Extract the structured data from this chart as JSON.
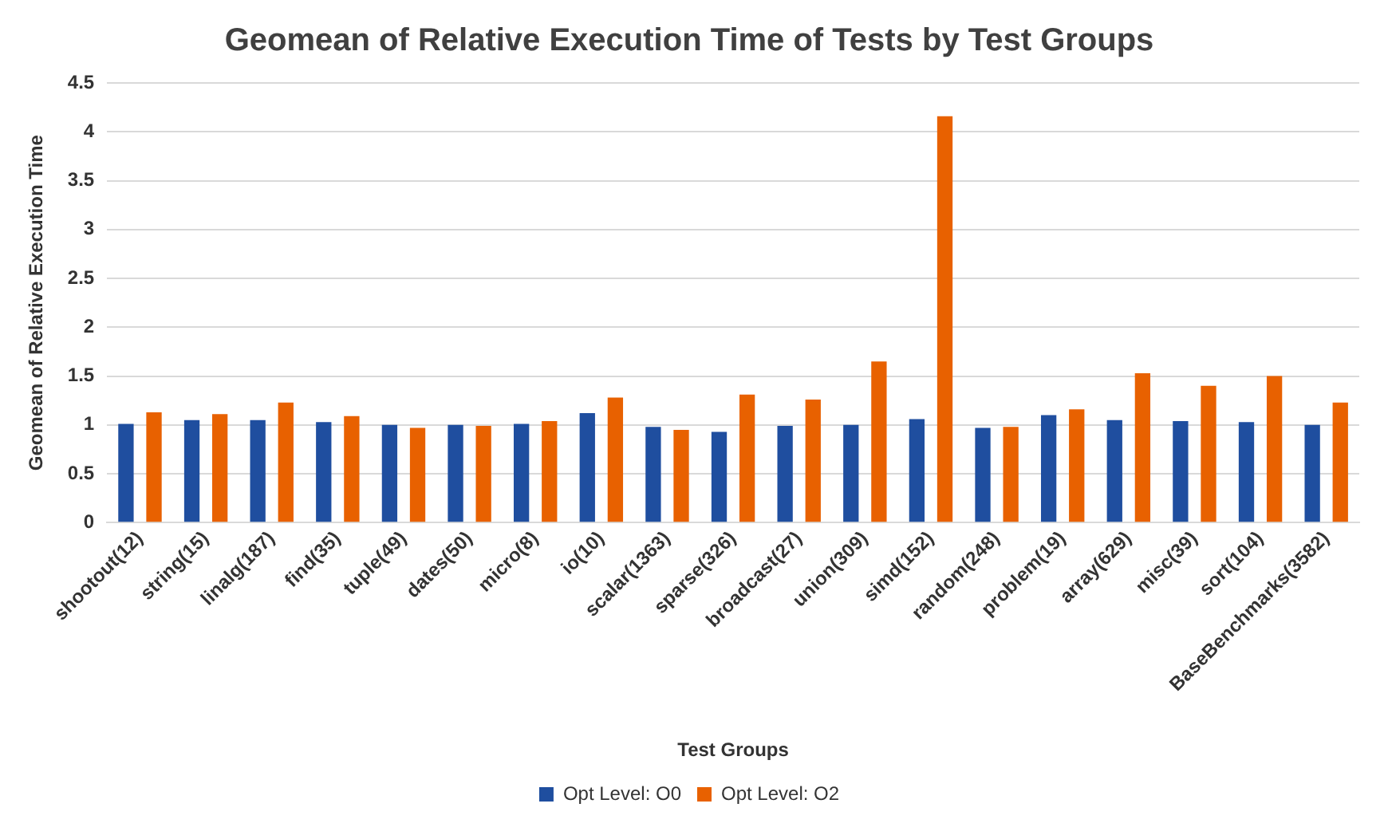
{
  "chart_data": {
    "type": "bar",
    "title": "Geomean of Relative Execution Time of Tests by Test Groups",
    "xlabel": "Test Groups",
    "ylabel": "Geomean of Relative Execution Time",
    "categories": [
      "shootout(12)",
      "string(15)",
      "linalg(187)",
      "find(35)",
      "tuple(49)",
      "dates(50)",
      "micro(8)",
      "io(10)",
      "scalar(1363)",
      "sparse(326)",
      "broadcast(27)",
      "union(309)",
      "simd(152)",
      "random(248)",
      "problem(19)",
      "array(629)",
      "misc(39)",
      "sort(104)",
      "BaseBenchmarks(3582)"
    ],
    "series": [
      {
        "name": "Opt Level: O0",
        "color": "#1f4e9f",
        "values": [
          1.01,
          1.05,
          1.05,
          1.03,
          1.0,
          1.0,
          1.01,
          1.12,
          0.98,
          0.93,
          0.99,
          1.0,
          1.06,
          0.97,
          1.1,
          1.05,
          1.04,
          1.03,
          1.0
        ]
      },
      {
        "name": "Opt Level: O2",
        "color": "#e86100",
        "values": [
          1.13,
          1.11,
          1.23,
          1.09,
          0.97,
          0.99,
          1.04,
          1.28,
          0.95,
          1.31,
          1.26,
          1.65,
          4.16,
          0.98,
          1.16,
          1.53,
          1.4,
          1.5,
          1.23
        ]
      }
    ],
    "ylim": [
      0,
      4.5
    ],
    "yticks": [
      0,
      0.5,
      1,
      1.5,
      2,
      2.5,
      3,
      3.5,
      4,
      4.5
    ],
    "grid": "y",
    "legend": "bottom"
  }
}
